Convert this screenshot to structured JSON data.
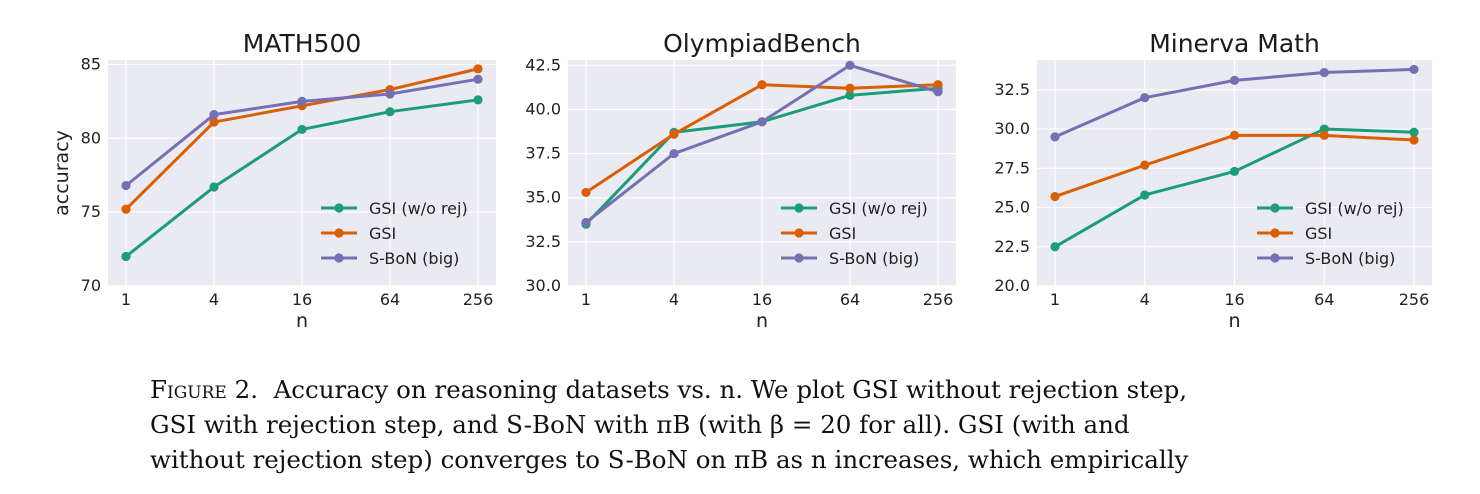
{
  "chart_data": [
    {
      "type": "line",
      "title": "MATH500",
      "xlabel": "n",
      "ylabel": "accuracy",
      "categories": [
        "1",
        "4",
        "16",
        "64",
        "256"
      ],
      "yticks": [
        "70",
        "75",
        "80",
        "85"
      ],
      "ylim": [
        70,
        85.3
      ],
      "grid": true,
      "legend_position": "lower-right",
      "series": [
        {
          "name": "GSI (w/o rej)",
          "color": "#1b9e77",
          "values": [
            72.0,
            76.7,
            80.6,
            81.8,
            82.6
          ]
        },
        {
          "name": "GSI",
          "color": "#d95f02",
          "values": [
            75.2,
            81.1,
            82.2,
            83.3,
            84.7
          ]
        },
        {
          "name": "S-BoN (big)",
          "color": "#7570b3",
          "values": [
            76.8,
            81.6,
            82.5,
            83.0,
            84.0
          ]
        }
      ]
    },
    {
      "type": "line",
      "title": "OlympiadBench",
      "xlabel": "n",
      "ylabel": "",
      "categories": [
        "1",
        "4",
        "16",
        "64",
        "256"
      ],
      "yticks": [
        "30.0",
        "32.5",
        "35.0",
        "37.5",
        "40.0",
        "42.5"
      ],
      "ylim": [
        30.0,
        42.8
      ],
      "grid": true,
      "legend_position": "lower-right",
      "series": [
        {
          "name": "GSI (w/o rej)",
          "color": "#1b9e77",
          "values": [
            33.5,
            38.7,
            39.3,
            40.8,
            41.2
          ]
        },
        {
          "name": "GSI",
          "color": "#d95f02",
          "values": [
            35.3,
            38.6,
            41.4,
            41.2,
            41.4
          ]
        },
        {
          "name": "S-BoN (big)",
          "color": "#7570b3",
          "values": [
            33.6,
            37.5,
            39.3,
            42.5,
            41.0
          ]
        }
      ]
    },
    {
      "type": "line",
      "title": "Minerva Math",
      "xlabel": "n",
      "ylabel": "",
      "categories": [
        "1",
        "4",
        "16",
        "64",
        "256"
      ],
      "yticks": [
        "20.0",
        "22.5",
        "25.0",
        "27.5",
        "30.0",
        "32.5"
      ],
      "ylim": [
        20.0,
        34.4
      ],
      "grid": true,
      "legend_position": "lower-right",
      "series": [
        {
          "name": "GSI (w/o rej)",
          "color": "#1b9e77",
          "values": [
            22.5,
            25.8,
            27.3,
            30.0,
            29.8
          ]
        },
        {
          "name": "GSI",
          "color": "#d95f02",
          "values": [
            25.7,
            27.7,
            29.6,
            29.6,
            29.3
          ]
        },
        {
          "name": "S-BoN (big)",
          "color": "#7570b3",
          "values": [
            29.5,
            32.0,
            33.1,
            33.6,
            33.8
          ]
        }
      ]
    }
  ],
  "caption": {
    "label": "Figure 2.",
    "line1": "Accuracy on reasoning datasets vs. n. We plot GSI without rejection step,",
    "line2": "GSI with rejection step, and S-BoN with πB (with β = 20 for all). GSI (with and",
    "line3": "without rejection step) converges to S-BoN on πB as n increases, which empirically"
  },
  "colors": {
    "plot_background": "#eaeaf2",
    "grid": "#ffffff",
    "gsi_wo_rej": "#1b9e77",
    "gsi": "#d95f02",
    "sbon_big": "#7570b3"
  }
}
